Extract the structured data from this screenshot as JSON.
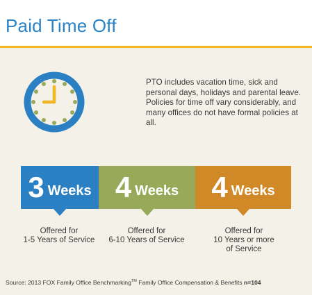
{
  "header": {
    "title": "Paid Time Off"
  },
  "icon": {
    "name": "clock-icon",
    "ring_color": "#2b80c4",
    "tick_color": "#98a95a",
    "hand_color": "#efb722",
    "face_color": "#f4f1e9"
  },
  "description": "PTO includes vacation time, sick and personal days, holidays and parental leave. Policies for time off vary considerably, and many offices do not have formal policies at all.",
  "tiers": [
    {
      "number": "3",
      "unit": "Weeks",
      "color": "#2b80c4",
      "caption_lines": [
        "Offered for",
        "1-5 Years of Service"
      ]
    },
    {
      "number": "4",
      "unit": "Weeks",
      "color": "#98a95a",
      "caption_lines": [
        "Offered for",
        "6-10 Years of Service"
      ]
    },
    {
      "number": "4",
      "unit": "Weeks",
      "color": "#d18927",
      "caption_lines": [
        "Offered for",
        "10 Years or more",
        "of Service"
      ]
    }
  ],
  "source": {
    "prefix": "Source:  2013 FOX Family Office Benchmarking",
    "trademark": "TM",
    "suffix": " Family Office Compensation & Benefits ",
    "sample": "n=104"
  },
  "colors": {
    "accent_rule": "#efb722",
    "title_blue": "#2b83c6",
    "background": "#f4f1e9"
  }
}
